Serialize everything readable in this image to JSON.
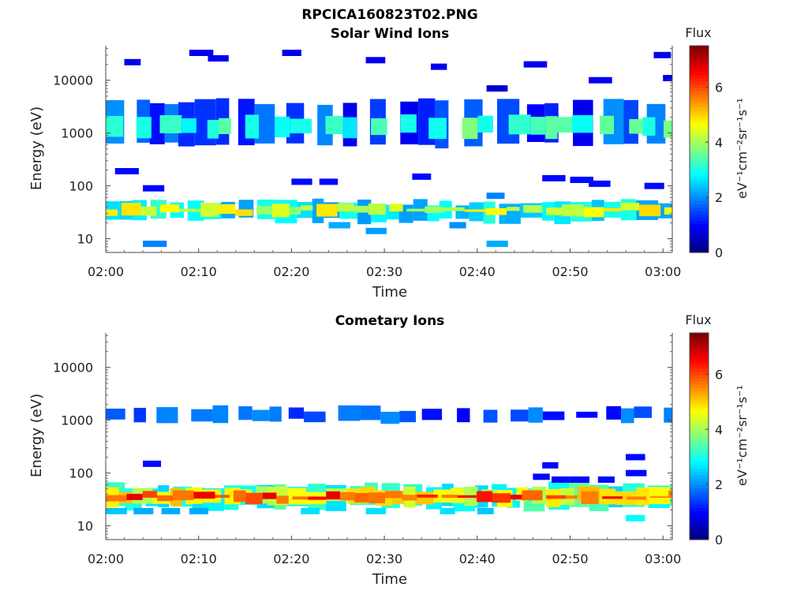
{
  "figure": {
    "title": "RPCICA160823T02.PNG"
  },
  "chart_data": [
    {
      "type": "heatmap",
      "title": "Solar Wind Ions",
      "xlabel": "Time",
      "ylabel": "Energy (eV)",
      "x_tick_labels": [
        "02:00",
        "02:10",
        "02:20",
        "02:30",
        "02:40",
        "02:50",
        "03:00"
      ],
      "x_range_minutes": [
        0,
        61
      ],
      "y_scale": "log",
      "y_tick_values": [
        10,
        100,
        1000,
        10000
      ],
      "y_tick_labels": [
        "10",
        "100",
        "1000",
        "10000"
      ],
      "y_range": [
        5.5,
        45000
      ],
      "colorbar": {
        "label_top": "Flux",
        "unit_label": "eV⁻¹cm⁻²sr⁻¹s⁻¹",
        "range": [
          0,
          7.5
        ],
        "tick_values": [
          0,
          2,
          4,
          6
        ],
        "tick_labels": [
          "0",
          "2",
          "4",
          "6"
        ],
        "colormap": "jet"
      },
      "bands": [
        {
          "e_lo": 600,
          "e_hi": 4000,
          "flux": 1.4
        },
        {
          "e_lo": 900,
          "e_hi": 2000,
          "flux": 3.2
        },
        {
          "e_lo": 22,
          "e_hi": 50,
          "flux": 2.6
        },
        {
          "e_lo": 30,
          "e_hi": 42,
          "flux": 4.4
        }
      ],
      "blobs": [
        {
          "t": 4,
          "e": 8,
          "flux": 1.9
        },
        {
          "t": 28,
          "e": 14,
          "flux": 2.1
        },
        {
          "t": 41,
          "e": 8,
          "flux": 2.2
        },
        {
          "t": 24,
          "e": 18,
          "flux": 2.2
        },
        {
          "t": 37,
          "e": 18,
          "flux": 2.0
        },
        {
          "t": 41,
          "e": 65,
          "flux": 1.9
        },
        {
          "t": 4,
          "e": 90,
          "flux": 1.0
        },
        {
          "t": 1,
          "e": 190,
          "flux": 1.0
        },
        {
          "t": 20,
          "e": 120,
          "flux": 1.0
        },
        {
          "t": 23,
          "e": 120,
          "flux": 1.0
        },
        {
          "t": 33,
          "e": 150,
          "flux": 1.0
        },
        {
          "t": 47,
          "e": 140,
          "flux": 1.0
        },
        {
          "t": 50,
          "e": 130,
          "flux": 1.0
        },
        {
          "t": 52,
          "e": 110,
          "flux": 1.0
        },
        {
          "t": 58,
          "e": 100,
          "flux": 1.0
        },
        {
          "t": 2,
          "e": 22000,
          "flux": 0.8
        },
        {
          "t": 9,
          "e": 33000,
          "flux": 0.8
        },
        {
          "t": 11,
          "e": 26000,
          "flux": 0.8
        },
        {
          "t": 19,
          "e": 33000,
          "flux": 0.8
        },
        {
          "t": 28,
          "e": 24000,
          "flux": 0.8
        },
        {
          "t": 35,
          "e": 18000,
          "flux": 0.8
        },
        {
          "t": 41,
          "e": 7000,
          "flux": 0.6
        },
        {
          "t": 45,
          "e": 20000,
          "flux": 0.8
        },
        {
          "t": 52,
          "e": 10000,
          "flux": 0.8
        },
        {
          "t": 59,
          "e": 30000,
          "flux": 0.8
        },
        {
          "t": 60,
          "e": 11000,
          "flux": 0.8
        }
      ]
    },
    {
      "type": "heatmap",
      "title": "Cometary Ions",
      "xlabel": "Time",
      "ylabel": "Energy (eV)",
      "x_tick_labels": [
        "02:00",
        "02:10",
        "02:20",
        "02:30",
        "02:40",
        "02:50",
        "03:00"
      ],
      "x_range_minutes": [
        0,
        61
      ],
      "y_scale": "log",
      "y_tick_values": [
        10,
        100,
        1000,
        10000
      ],
      "y_tick_labels": [
        "10",
        "100",
        "1000",
        "10000"
      ],
      "y_range": [
        5.5,
        45000
      ],
      "colorbar": {
        "label_top": "Flux",
        "unit_label": "eV⁻¹cm⁻²sr⁻¹s⁻¹",
        "range": [
          0,
          7.5
        ],
        "tick_values": [
          0,
          2,
          4,
          6
        ],
        "tick_labels": [
          "0",
          "2",
          "4",
          "6"
        ],
        "colormap": "jet"
      },
      "bands": [
        {
          "e_lo": 1000,
          "e_hi": 1700,
          "flux": 1.5
        },
        {
          "e_lo": 22,
          "e_hi": 60,
          "flux": 3.0
        },
        {
          "e_lo": 26,
          "e_hi": 50,
          "flux": 4.6
        },
        {
          "e_lo": 30,
          "e_hi": 42,
          "flux": 6.2
        }
      ],
      "blobs": [
        {
          "t": 0,
          "e": 19,
          "flux": 2.4
        },
        {
          "t": 3,
          "e": 19,
          "flux": 2.2
        },
        {
          "t": 6,
          "e": 19,
          "flux": 2.2
        },
        {
          "t": 9,
          "e": 19,
          "flux": 2.2
        },
        {
          "t": 21,
          "e": 19,
          "flux": 2.6
        },
        {
          "t": 28,
          "e": 19,
          "flux": 2.6
        },
        {
          "t": 36,
          "e": 19,
          "flux": 2.6
        },
        {
          "t": 40,
          "e": 19,
          "flux": 2.4
        },
        {
          "t": 56,
          "e": 14,
          "flux": 2.8
        },
        {
          "t": 4,
          "e": 150,
          "flux": 1.0
        },
        {
          "t": 47,
          "e": 140,
          "flux": 1.0
        },
        {
          "t": 46,
          "e": 85,
          "flux": 1.0
        },
        {
          "t": 48,
          "e": 75,
          "flux": 1.0
        },
        {
          "t": 50,
          "e": 75,
          "flux": 1.0
        },
        {
          "t": 53,
          "e": 75,
          "flux": 1.0
        },
        {
          "t": 56,
          "e": 200,
          "flux": 1.0
        },
        {
          "t": 56,
          "e": 100,
          "flux": 1.0
        }
      ]
    }
  ]
}
